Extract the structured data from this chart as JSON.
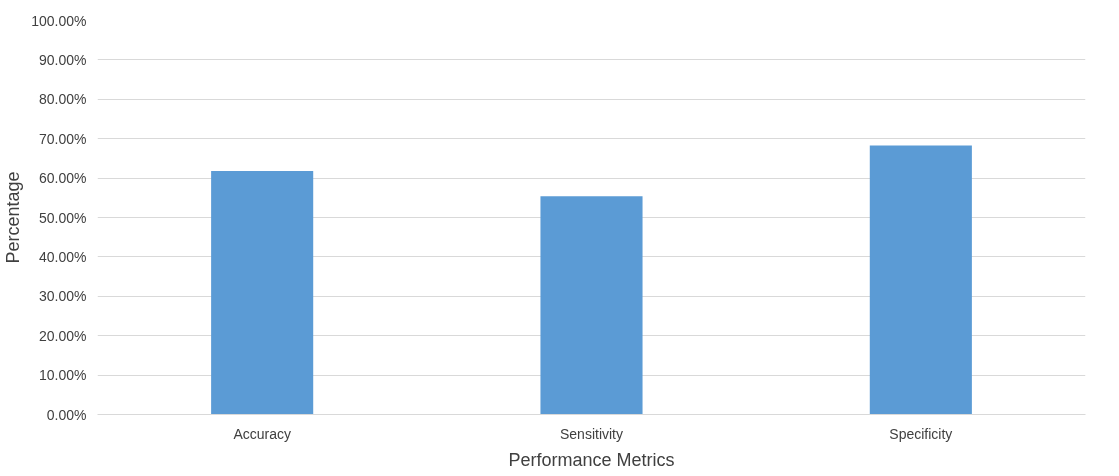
{
  "chart_data": {
    "type": "bar",
    "xlabel": "Performance Metrics",
    "ylabel": "Percentage",
    "categories": [
      "Accuracy",
      "Sensitivity",
      "Specificity"
    ],
    "values": [
      61.8,
      55.4,
      68.3
    ],
    "color": "#5b9bd5",
    "ylim": [
      0,
      100
    ],
    "yticks": [
      {
        "value": 0,
        "label": "0.00%"
      },
      {
        "value": 10,
        "label": "10.00%"
      },
      {
        "value": 20,
        "label": "20.00%"
      },
      {
        "value": 30,
        "label": "30.00%"
      },
      {
        "value": 40,
        "label": "40.00%"
      },
      {
        "value": 50,
        "label": "50.00%"
      },
      {
        "value": 60,
        "label": "60.00%"
      },
      {
        "value": 70,
        "label": "70.00%"
      },
      {
        "value": 80,
        "label": "80.00%"
      },
      {
        "value": 90,
        "label": "90.00%"
      },
      {
        "value": 100,
        "label": "100.00%"
      }
    ],
    "grid": "y"
  }
}
